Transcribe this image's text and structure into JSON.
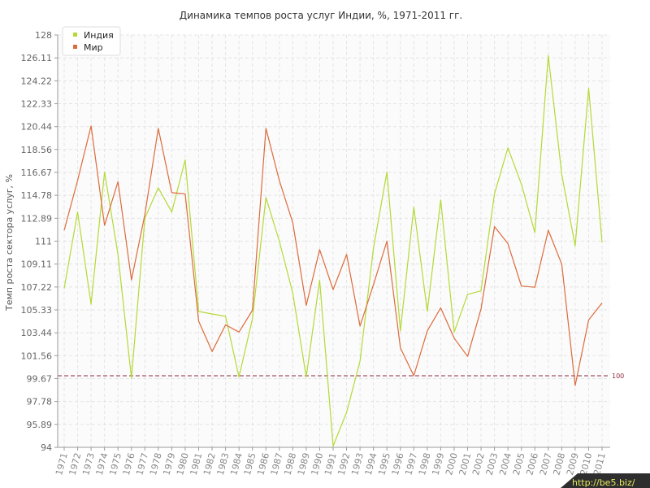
{
  "chart_data": {
    "type": "line",
    "title": "Динамика темпов роста услуг Индии, %, 1971-2011 гг.",
    "xlabel": "",
    "ylabel": "Темп роста сектора услуг, %",
    "ylim": [
      94,
      128
    ],
    "yticks": [
      "94",
      "95.89",
      "97.78",
      "99.67",
      "101.56",
      "103.44",
      "105.33",
      "107.22",
      "109.11",
      "111",
      "112.89",
      "114.78",
      "116.67",
      "118.56",
      "120.44",
      "122.33",
      "124.22",
      "126.11",
      "128"
    ],
    "categories": [
      "1971",
      "1972",
      "1973",
      "1974",
      "1975",
      "1976",
      "1977",
      "1978",
      "1979",
      "1980",
      "1981",
      "1982",
      "1983",
      "1984",
      "1985",
      "1986",
      "1987",
      "1988",
      "1989",
      "1990",
      "1991",
      "1992",
      "1993",
      "1994",
      "1995",
      "1996",
      "1997",
      "1998",
      "1999",
      "2000",
      "2001",
      "2002",
      "2003",
      "2004",
      "2005",
      "2006",
      "2007",
      "2008",
      "2009",
      "2010",
      "2011"
    ],
    "series": [
      {
        "name": "Индия",
        "color": "#b4d935",
        "values": [
          107.1,
          113.4,
          105.8,
          116.7,
          109.9,
          99.7,
          112.9,
          115.4,
          113.4,
          117.7,
          105.2,
          105.0,
          104.8,
          99.8,
          104.6,
          114.6,
          111.0,
          106.7,
          99.8,
          107.8,
          94.1,
          96.9,
          101.1,
          110.4,
          116.7,
          103.6,
          113.8,
          105.2,
          114.4,
          103.5,
          106.6,
          106.9,
          114.9,
          118.7,
          115.7,
          111.7,
          126.3,
          116.5,
          110.6,
          123.6,
          110.9
        ]
      },
      {
        "name": "Мир",
        "color": "#dc6b3c",
        "values": [
          111.9,
          116.0,
          120.5,
          112.3,
          115.9,
          107.8,
          113.2,
          120.3,
          115.0,
          114.9,
          104.4,
          101.9,
          104.1,
          103.5,
          105.3,
          120.3,
          116.0,
          112.5,
          105.7,
          110.3,
          107.0,
          109.9,
          104.0,
          107.4,
          111.0,
          102.2,
          99.9,
          103.6,
          105.5,
          103.0,
          101.5,
          105.4,
          112.2,
          110.8,
          107.3,
          107.2,
          111.9,
          109.1,
          99.1,
          104.5,
          105.9
        ]
      }
    ],
    "reference_line": {
      "value": 99.9,
      "label": "100",
      "color": "#8b2a3c"
    },
    "grid": true,
    "legend": "top-left"
  },
  "watermark": "http://be5.biz/"
}
